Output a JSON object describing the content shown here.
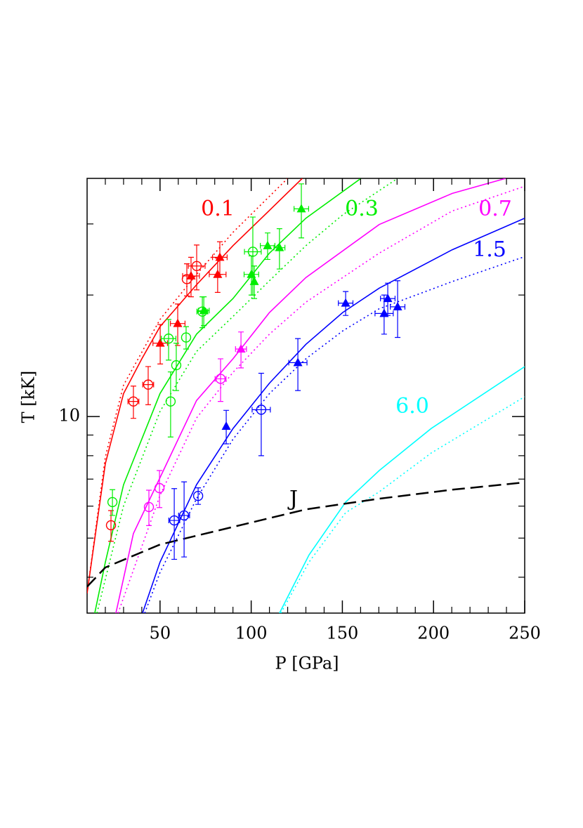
{
  "chart_data": {
    "type": "line",
    "xlabel": "P [GPa]",
    "ylabel": "T [kK]",
    "xlim": [
      10,
      250
    ],
    "ylim": [
      3.26,
      38.9
    ],
    "xticks": [
      50,
      100,
      150,
      200,
      250
    ],
    "xminorticks": [
      20,
      30,
      40,
      60,
      70,
      80,
      90,
      110,
      120,
      130,
      140,
      160,
      170,
      180,
      190,
      210,
      220,
      230,
      240
    ],
    "yticks": [
      10
    ],
    "yminorticks": [
      4,
      5,
      6,
      7,
      8,
      9,
      20,
      30
    ],
    "ylog": true,
    "curves": [
      {
        "color": "#ff0000",
        "style": "solid",
        "x": [
          10,
          20,
          30,
          40,
          50,
          70,
          90,
          110,
          128
        ],
        "y": [
          3.65,
          7.65,
          11.4,
          13.9,
          16.7,
          21.2,
          26.5,
          32.4,
          38.9
        ]
      },
      {
        "color": "#ff0000",
        "style": "dotted",
        "x": [
          10,
          20,
          30,
          50,
          70,
          90,
          120
        ],
        "y": [
          3.65,
          7.95,
          11.97,
          17.4,
          22.5,
          28.6,
          38.9
        ]
      },
      {
        "color": "#00ee00",
        "style": "solid",
        "x": [
          14.2,
          20,
          30,
          50,
          70,
          90,
          110,
          130,
          160.2
        ],
        "y": [
          3.26,
          4.36,
          6.78,
          11.4,
          16.0,
          19.6,
          25.4,
          31.0,
          38.9
        ]
      },
      {
        "color": "#00ee00",
        "style": "dotted",
        "x": [
          15.4,
          30,
          50,
          70,
          90,
          110,
          130,
          150.2,
          180.3
        ],
        "y": [
          3.26,
          6.01,
          10.3,
          14.5,
          17.7,
          21.7,
          26.5,
          31.6,
          38.9
        ]
      },
      {
        "color": "#ff00ff",
        "style": "solid",
        "x": [
          25.8,
          35.4,
          50,
          70,
          90,
          110,
          130,
          170.2,
          210.3,
          239.6
        ],
        "y": [
          3.26,
          5.13,
          7.06,
          10.96,
          13.9,
          18.1,
          22.1,
          29.9,
          35.7,
          38.9
        ]
      },
      {
        "color": "#ff00ff",
        "style": "dotted",
        "x": [
          27,
          50,
          70,
          90,
          110,
          130,
          170.2,
          210.3,
          250
        ],
        "y": [
          3.26,
          6.38,
          9.92,
          12.87,
          16.0,
          19.2,
          25.4,
          32.3,
          37.2
        ]
      },
      {
        "color": "#0000ff",
        "style": "solid",
        "x": [
          40.4,
          50,
          70,
          90,
          110,
          130,
          150.2,
          170.2,
          210.3,
          250
        ],
        "y": [
          3.26,
          4.36,
          6.78,
          9.34,
          12.1,
          15.1,
          18.1,
          20.8,
          25.9,
          31.0
        ]
      },
      {
        "color": "#0000ff",
        "style": "dotted",
        "x": [
          41.6,
          50,
          70,
          90,
          110,
          130,
          150.2,
          170.2,
          210.3,
          250
        ],
        "y": [
          3.26,
          4.11,
          6.26,
          8.79,
          11.4,
          13.9,
          16.3,
          18.5,
          21.6,
          24.9
        ]
      },
      {
        "color": "#00ffff",
        "style": "solid",
        "x": [
          115.5,
          131.7,
          151.8,
          170.2,
          198.7,
          250
        ],
        "y": [
          3.26,
          4.54,
          6.14,
          7.35,
          9.34,
          13.3
        ]
      },
      {
        "color": "#00ffff",
        "style": "dotted",
        "x": [
          116.3,
          131.7,
          151.8,
          170.2,
          198.7,
          250
        ],
        "y": [
          3.26,
          4.36,
          5.78,
          6.51,
          8.12,
          11.2
        ]
      },
      {
        "color": "#000000",
        "style": "dashed",
        "x": [
          10,
          20,
          50,
          90,
          130,
          170.2,
          210.3,
          250
        ],
        "y": [
          3.79,
          4.23,
          4.82,
          5.33,
          5.89,
          6.26,
          6.59,
          6.87
        ]
      }
    ],
    "points": [
      {
        "color": "#ff0000",
        "marker": "circle",
        "x": [
          23.1,
          35.4,
          43.5,
          64.7,
          70.1
        ],
        "y": [
          5.38,
          10.9,
          12.0,
          21.9,
          23.6
        ],
        "xerr": [
          null,
          3,
          3,
          null,
          4.6
        ],
        "yerr": [
          0.47,
          1.0,
          1.3,
          2,
          3
        ]
      },
      {
        "color": "#ff0000",
        "marker": "triangle",
        "x": [
          50.1,
          59.7,
          67,
          81.6,
          82.8
        ],
        "y": [
          15.2,
          17.0,
          22.3,
          22.5,
          24.8
        ],
        "xerr": [
          4,
          4,
          4.6,
          4.6,
          4
        ],
        "yerr": [
          1.7,
          2,
          2.5,
          2.2,
          2.3
        ]
      },
      {
        "color": "#00ee00",
        "marker": "circle",
        "x": [
          23.9,
          54.7,
          58.9,
          55.8,
          64.3,
          73.2,
          100.9
        ],
        "y": [
          6.14,
          15.6,
          13.4,
          10.9,
          15.7,
          18.2,
          25.6
        ],
        "xerr": [
          null,
          4,
          null,
          null,
          null,
          3,
          4.6
        ],
        "yerr": [
          0.45,
          1.8,
          1.8,
          2,
          1,
          1.6,
          5.6
        ]
      },
      {
        "color": "#00ee00",
        "marker": "triangle",
        "x": [
          74,
          100.1,
          101.7,
          109,
          115.5,
          127.5
        ],
        "y": [
          18.3,
          22.5,
          21.6,
          26.5,
          26.2,
          32.7
        ],
        "xerr": [
          3,
          4,
          null,
          4,
          3,
          4
        ],
        "yerr": [
          1.5,
          2.5,
          2,
          2,
          3,
          5
        ]
      },
      {
        "color": "#ff00ff",
        "marker": "circle",
        "x": [
          43.9,
          49.7,
          83.2
        ],
        "y": [
          5.97,
          6.65,
          12.4
        ],
        "xerr": [
          null,
          null,
          3
        ],
        "yerr": [
          0.6,
          0.7,
          1.5
        ]
      },
      {
        "color": "#ff00ff",
        "marker": "triangle",
        "x": [
          94.4
        ],
        "y": [
          14.7
        ],
        "xerr": [
          3
        ],
        "yerr": [
          1.5
        ]
      },
      {
        "color": "#0000ff",
        "marker": "circle",
        "x": [
          57.8,
          63.2,
          70.9,
          105.5
        ],
        "y": [
          5.53,
          5.69,
          6.36,
          10.4
        ],
        "xerr": [
          3,
          3,
          null,
          5
        ],
        "yerr": [
          1.1,
          1.2,
          0.3,
          2.4
        ]
      },
      {
        "color": "#0000ff",
        "marker": "triangle",
        "x": [
          86.3,
          125.6,
          151.8,
          174.9,
          172.9,
          180.3
        ],
        "y": [
          9.46,
          13.6,
          19.1,
          19.6,
          18.0,
          18.7
        ],
        "xerr": [
          null,
          5,
          4,
          4,
          5,
          4
        ],
        "yerr": [
          0.9,
          2,
          1.3,
          1.8,
          2,
          3
        ]
      }
    ],
    "annotations": [
      {
        "text": "0.1",
        "color": "#ff0000"
      },
      {
        "text": "0.3",
        "color": "#00ee00"
      },
      {
        "text": "0.7",
        "color": "#ff00ff"
      },
      {
        "text": "1.5",
        "color": "#0000ff"
      },
      {
        "text": "6.0",
        "color": "#00ffff"
      },
      {
        "text": "J",
        "color": "#000000"
      }
    ]
  }
}
